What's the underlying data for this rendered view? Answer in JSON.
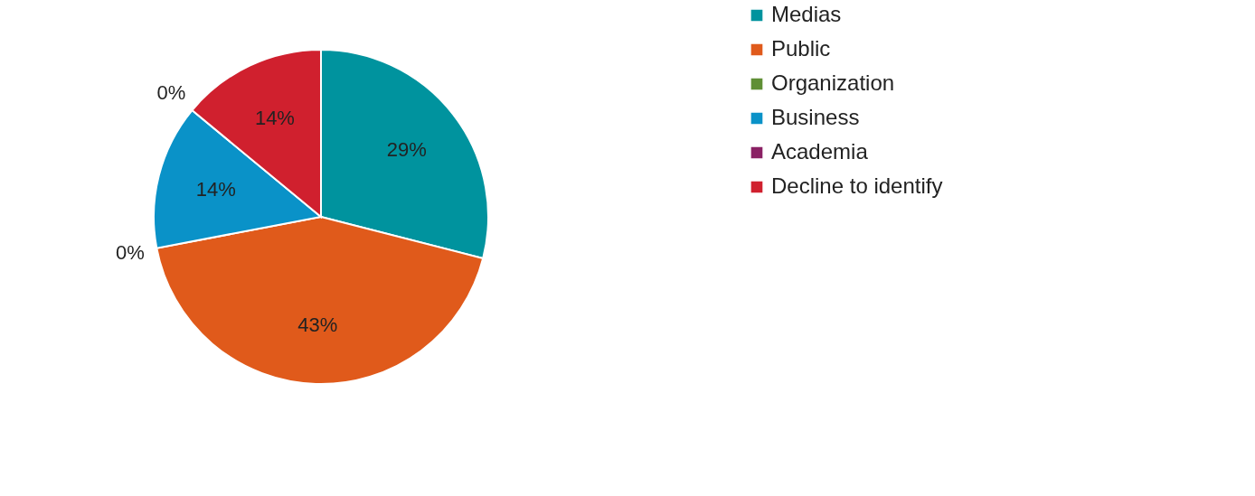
{
  "chart_data": {
    "type": "pie",
    "categories": [
      "Medias",
      "Public",
      "Organization",
      "Business",
      "Academia",
      "Decline to identify"
    ],
    "values": [
      29,
      43,
      0,
      14,
      0,
      14
    ],
    "value_labels": [
      "29%",
      "43%",
      "0%",
      "14%",
      "0%",
      "14%"
    ],
    "colors": [
      "#00939e",
      "#e05a1b",
      "#5f8f35",
      "#0a92c8",
      "#8a2064",
      "#d0202e"
    ],
    "legend": "right"
  }
}
